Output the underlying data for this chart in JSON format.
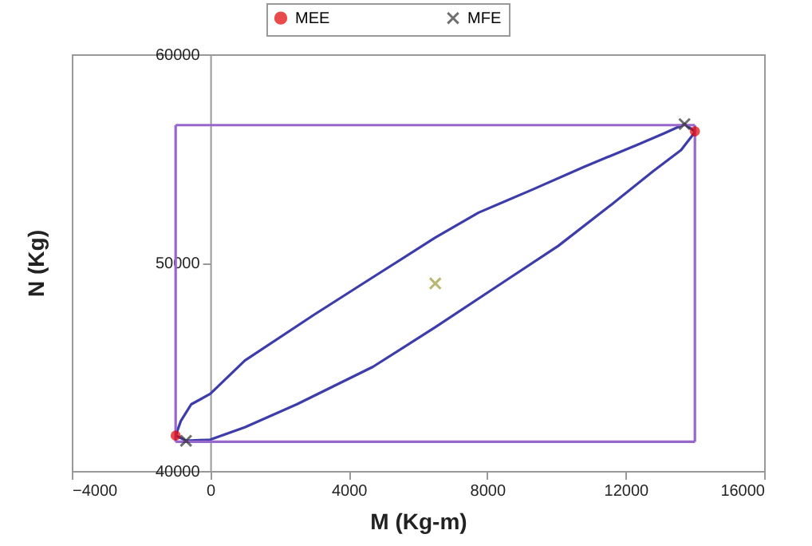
{
  "chart_data": {
    "type": "line",
    "xlabel": "M (Kg-m)",
    "ylabel": "N (Kg)",
    "xlim": [
      -4000,
      16000
    ],
    "ylim": [
      40000,
      60000
    ],
    "xticks": [
      -4000,
      0,
      4000,
      8000,
      12000,
      16000
    ],
    "yticks": [
      40000,
      50000,
      60000
    ],
    "grid": false,
    "legend": "top",
    "series": [
      {
        "color": "#3c3caa",
        "x": [
          -1000,
          -850,
          -550,
          0,
          1000,
          3000,
          4700,
          6500,
          7750,
          9300,
          10800,
          12400,
          13100,
          13700,
          14000
        ],
        "values": [
          41700,
          42400,
          43200,
          43700,
          45300,
          47500,
          49300,
          51200,
          52400,
          53500,
          54600,
          55700,
          56200,
          56650,
          56300
        ]
      },
      {
        "color": "#3c3caa",
        "x": [
          -1000,
          -700,
          0,
          1000,
          2500,
          4700,
          6500,
          8500,
          10050,
          11600,
          12800,
          13600,
          13970,
          14000
        ],
        "values": [
          41700,
          41450,
          41500,
          42100,
          43200,
          45000,
          46900,
          49100,
          50800,
          52800,
          54400,
          55400,
          56200,
          56300
        ]
      },
      {
        "color": "#9966cc",
        "x": [
          -1000,
          14000
        ],
        "values": [
          56600,
          56600
        ]
      },
      {
        "color": "#9966cc",
        "x": [
          -1000,
          14000
        ],
        "values": [
          41400,
          41400
        ]
      },
      {
        "color": "#9966cc",
        "x": [
          -1000,
          -1000
        ],
        "values": [
          41400,
          56600
        ]
      },
      {
        "color": "#9966cc",
        "x": [
          14000,
          14000
        ],
        "values": [
          41400,
          56600
        ]
      },
      {
        "type": "scatter",
        "name": "MEE",
        "color": "#e00000",
        "marker": "circle",
        "x": [
          -1000,
          14000
        ],
        "values": [
          41700,
          56300
        ]
      },
      {
        "type": "scatter",
        "name": "MFE",
        "color": "#333333",
        "marker": "cross",
        "x": [
          -700,
          13700
        ],
        "values": [
          41450,
          56650
        ]
      },
      {
        "type": "scatter",
        "color": "#999933",
        "marker": "cross",
        "x": [
          6500
        ],
        "values": [
          49000
        ]
      }
    ]
  }
}
